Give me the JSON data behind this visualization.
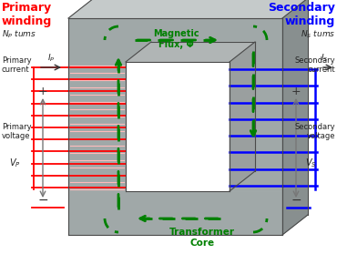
{
  "primary_winding_label": "Primary\nwinding",
  "primary_np_label": "$N_P$ tums",
  "primary_current_label": "Primary\ncurrent",
  "primary_ip_label": "$I_P$",
  "primary_voltage_label": "Primary\nvoltage",
  "primary_vp_label": "$V_P$",
  "secondary_winding_label": "Secondary\nwinding",
  "secondary_ns_label": "$N_S$ tums",
  "secondary_current_label": "Secondary\ncurrent",
  "secondary_is_label": "$I_S$",
  "secondary_voltage_label": "Secondary\nvoltage",
  "secondary_vs_label": "$V_S$",
  "magnetic_flux_label": "Magnetic\nFlux, Φ",
  "transformer_core_label": "Transformer\nCore",
  "primary_color": "#ff0000",
  "secondary_color": "#0000ff",
  "flux_color": "#008000",
  "core_face": "#a0a8a8",
  "core_top": "#c5caca",
  "core_side": "#888f8f",
  "core_inner_top": "#b0b5b5",
  "core_inner_side": "#9a9f9f",
  "core_outline": "#4a4a4a",
  "bg_color": "#ffffff"
}
